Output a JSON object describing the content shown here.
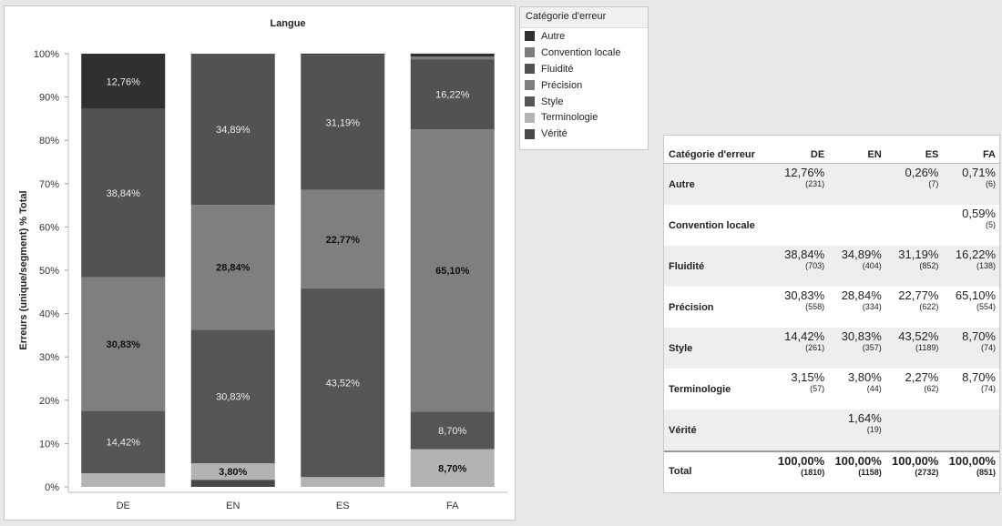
{
  "colors": {
    "Autre": "#303030",
    "Convention locale": "#7d7d7d",
    "Fluidité": "#525252",
    "Précision": "#7f7f7f",
    "Style": "#555555",
    "Terminologie": "#b3b3b3",
    "Vérité": "#484848"
  },
  "legend": {
    "title": "Catégorie d'erreur",
    "items": [
      "Autre",
      "Convention locale",
      "Fluidité",
      "Précision",
      "Style",
      "Terminologie",
      "Vérité"
    ]
  },
  "chart_data": {
    "type": "bar",
    "stacked": true,
    "title": "Langue",
    "xlabel": "",
    "ylabel": "Erreurs (unique/segment) % Total",
    "ylim": [
      0,
      1
    ],
    "yticks": [
      "0%",
      "10%",
      "20%",
      "30%",
      "40%",
      "50%",
      "60%",
      "70%",
      "80%",
      "90%",
      "100%"
    ],
    "categories": [
      "DE",
      "EN",
      "ES",
      "FA"
    ],
    "series": [
      {
        "name": "Vérité",
        "values": [
          0,
          0.0164,
          0,
          0
        ],
        "labels": [
          "",
          "",
          "",
          ""
        ]
      },
      {
        "name": "Terminologie",
        "values": [
          0.0315,
          0.038,
          0.0227,
          0.087
        ],
        "labels": [
          "",
          "3,80%",
          "",
          "8,70%"
        ]
      },
      {
        "name": "Style",
        "values": [
          0.1442,
          0.3083,
          0.4352,
          0.087
        ],
        "labels": [
          "14,42%",
          "30,83%",
          "43,52%",
          "8,70%"
        ]
      },
      {
        "name": "Précision",
        "values": [
          0.3083,
          0.2884,
          0.2277,
          0.651
        ],
        "labels": [
          "30,83%",
          "28,84%",
          "22,77%",
          "65,10%"
        ]
      },
      {
        "name": "Fluidité",
        "values": [
          0.3884,
          0.3489,
          0.3119,
          0.1622
        ],
        "labels": [
          "38,84%",
          "34,89%",
          "31,19%",
          "16,22%"
        ]
      },
      {
        "name": "Convention locale",
        "values": [
          0,
          0,
          0,
          0.0059
        ],
        "labels": [
          "",
          "",
          "",
          ""
        ]
      },
      {
        "name": "Autre",
        "values": [
          0.1276,
          0,
          0.0026,
          0.0071
        ],
        "labels": [
          "12,76%",
          "",
          "",
          ""
        ]
      }
    ],
    "dark_label_series": [
      "Précision"
    ]
  },
  "table": {
    "header": [
      "Catégorie d'erreur",
      "DE",
      "EN",
      "ES",
      "FA"
    ],
    "rows": [
      {
        "label": "Autre",
        "cells": [
          [
            "12,76%",
            "(231)"
          ],
          [
            "",
            ""
          ],
          [
            "0,26%",
            "(7)"
          ],
          [
            "0,71%",
            "(6)"
          ]
        ]
      },
      {
        "label": "Convention locale",
        "cells": [
          [
            "",
            ""
          ],
          [
            "",
            ""
          ],
          [
            "",
            ""
          ],
          [
            "0,59%",
            "(5)"
          ]
        ]
      },
      {
        "label": "Fluidité",
        "cells": [
          [
            "38,84%",
            "(703)"
          ],
          [
            "34,89%",
            "(404)"
          ],
          [
            "31,19%",
            "(852)"
          ],
          [
            "16,22%",
            "(138)"
          ]
        ]
      },
      {
        "label": "Précision",
        "cells": [
          [
            "30,83%",
            "(558)"
          ],
          [
            "28,84%",
            "(334)"
          ],
          [
            "22,77%",
            "(622)"
          ],
          [
            "65,10%",
            "(554)"
          ]
        ]
      },
      {
        "label": "Style",
        "cells": [
          [
            "14,42%",
            "(261)"
          ],
          [
            "30,83%",
            "(357)"
          ],
          [
            "43,52%",
            "(1189)"
          ],
          [
            "8,70%",
            "(74)"
          ]
        ]
      },
      {
        "label": "Terminologie",
        "cells": [
          [
            "3,15%",
            "(57)"
          ],
          [
            "3,80%",
            "(44)"
          ],
          [
            "2,27%",
            "(62)"
          ],
          [
            "8,70%",
            "(74)"
          ]
        ]
      },
      {
        "label": "Vérité",
        "cells": [
          [
            "",
            ""
          ],
          [
            "1,64%",
            "(19)"
          ],
          [
            "",
            ""
          ],
          [
            "",
            ""
          ]
        ]
      },
      {
        "label": "Total",
        "cells": [
          [
            "100,00%",
            "(1810)"
          ],
          [
            "100,00%",
            "(1158)"
          ],
          [
            "100,00%",
            "(2732)"
          ],
          [
            "100,00%",
            "(851)"
          ]
        ]
      }
    ]
  }
}
